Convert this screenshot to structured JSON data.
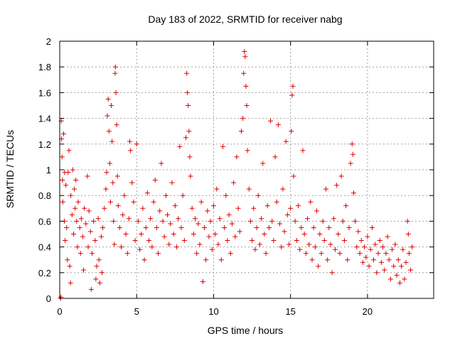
{
  "chart_data": {
    "type": "scatter",
    "title": "Day 183 of 2022, SRMTID for receiver nabg",
    "xlabel": "GPS time / hours",
    "ylabel": "SRMTID / TECUs",
    "xlim": [
      0,
      24.3
    ],
    "ylim": [
      0,
      2
    ],
    "xticks": [
      0,
      5,
      10,
      15,
      20
    ],
    "yticks": [
      0,
      0.2,
      0.4,
      0.6,
      0.8,
      1,
      1.2,
      1.4,
      1.6,
      1.8,
      2
    ],
    "xtick_labels": [
      "0",
      "5",
      "10",
      "15",
      "20"
    ],
    "ytick_labels": [
      "0",
      "0.2",
      "0.4",
      "0.6",
      "0.8",
      "1",
      "1.2",
      "1.4",
      "1.6",
      "1.8",
      "2"
    ],
    "grid": true,
    "marker": "plus",
    "color": "#dd0000",
    "series": [
      {
        "name": "SRMTID",
        "points": [
          [
            0.05,
            0.0
          ],
          [
            0.08,
            0.01
          ],
          [
            0.1,
            1.38
          ],
          [
            0.12,
            1.24
          ],
          [
            0.15,
            1.1
          ],
          [
            0.18,
            0.92
          ],
          [
            0.2,
            0.75
          ],
          [
            0.25,
            1.28
          ],
          [
            0.3,
            0.6
          ],
          [
            0.32,
            0.98
          ],
          [
            0.35,
            0.45
          ],
          [
            0.4,
            0.88
          ],
          [
            0.45,
            0.55
          ],
          [
            0.5,
            0.3
          ],
          [
            0.55,
            0.98
          ],
          [
            0.6,
            1.15
          ],
          [
            0.65,
            0.25
          ],
          [
            0.7,
            0.12
          ],
          [
            0.72,
            0.8
          ],
          [
            0.8,
            0.65
          ],
          [
            0.85,
            1.0
          ],
          [
            0.9,
            0.5
          ],
          [
            0.95,
            0.85
          ],
          [
            1.0,
            0.7
          ],
          [
            1.05,
            0.92
          ],
          [
            1.1,
            0.6
          ],
          [
            1.15,
            0.4
          ],
          [
            1.2,
            0.75
          ],
          [
            1.3,
            0.55
          ],
          [
            1.35,
            0.35
          ],
          [
            1.4,
            0.62
          ],
          [
            1.5,
            0.48
          ],
          [
            1.55,
            0.22
          ],
          [
            1.6,
            0.7
          ],
          [
            1.7,
            0.58
          ],
          [
            1.8,
            0.95
          ],
          [
            1.85,
            0.4
          ],
          [
            1.9,
            0.68
          ],
          [
            2.0,
            0.52
          ],
          [
            2.05,
            0.07
          ],
          [
            2.1,
            0.35
          ],
          [
            2.2,
            0.6
          ],
          [
            2.3,
            0.45
          ],
          [
            2.35,
            0.15
          ],
          [
            2.4,
            0.25
          ],
          [
            2.5,
            0.62
          ],
          [
            2.55,
            0.3
          ],
          [
            2.6,
            0.12
          ],
          [
            2.7,
            0.48
          ],
          [
            2.75,
            0.2
          ],
          [
            2.8,
            0.55
          ],
          [
            2.9,
            0.7
          ],
          [
            3.0,
            0.85
          ],
          [
            3.05,
            0.98
          ],
          [
            3.1,
            1.42
          ],
          [
            3.15,
            1.55
          ],
          [
            3.2,
            1.3
          ],
          [
            3.25,
            1.05
          ],
          [
            3.3,
            0.75
          ],
          [
            3.35,
            1.5
          ],
          [
            3.4,
            1.22
          ],
          [
            3.45,
            0.9
          ],
          [
            3.5,
            0.6
          ],
          [
            3.55,
            0.42
          ],
          [
            3.6,
            1.75
          ],
          [
            3.62,
            1.8
          ],
          [
            3.65,
            1.6
          ],
          [
            3.7,
            1.35
          ],
          [
            3.75,
            0.95
          ],
          [
            3.8,
            0.72
          ],
          [
            3.9,
            0.55
          ],
          [
            4.0,
            0.4
          ],
          [
            4.1,
            0.65
          ],
          [
            4.2,
            0.8
          ],
          [
            4.3,
            0.5
          ],
          [
            4.4,
            0.35
          ],
          [
            4.5,
            0.62
          ],
          [
            4.55,
            1.22
          ],
          [
            4.6,
            1.15
          ],
          [
            4.7,
            0.9
          ],
          [
            4.8,
            0.75
          ],
          [
            4.9,
            0.45
          ],
          [
            5.0,
            1.2
          ],
          [
            5.1,
            0.6
          ],
          [
            5.2,
            0.38
          ],
          [
            5.3,
            0.5
          ],
          [
            5.4,
            0.7
          ],
          [
            5.5,
            0.3
          ],
          [
            5.6,
            0.55
          ],
          [
            5.7,
            0.82
          ],
          [
            5.8,
            0.45
          ],
          [
            5.9,
            0.62
          ],
          [
            6.0,
            0.4
          ],
          [
            6.1,
            0.75
          ],
          [
            6.2,
            0.92
          ],
          [
            6.3,
            0.55
          ],
          [
            6.4,
            0.35
          ],
          [
            6.5,
            0.68
          ],
          [
            6.6,
            1.05
          ],
          [
            6.7,
            0.6
          ],
          [
            6.8,
            0.48
          ],
          [
            6.9,
            0.8
          ],
          [
            7.0,
            0.65
          ],
          [
            7.1,
            0.42
          ],
          [
            7.2,
            0.58
          ],
          [
            7.3,
            0.9
          ],
          [
            7.4,
            0.5
          ],
          [
            7.5,
            0.72
          ],
          [
            7.6,
            0.4
          ],
          [
            7.7,
            0.62
          ],
          [
            7.8,
            1.18
          ],
          [
            7.9,
            0.55
          ],
          [
            8.0,
            0.8
          ],
          [
            8.1,
            0.45
          ],
          [
            8.2,
            1.25
          ],
          [
            8.25,
            1.75
          ],
          [
            8.3,
            1.6
          ],
          [
            8.35,
            1.5
          ],
          [
            8.4,
            1.3
          ],
          [
            8.45,
            1.1
          ],
          [
            8.5,
            0.95
          ],
          [
            8.6,
            0.7
          ],
          [
            8.7,
            0.5
          ],
          [
            8.8,
            0.62
          ],
          [
            8.9,
            0.35
          ],
          [
            9.0,
            0.58
          ],
          [
            9.1,
            0.42
          ],
          [
            9.2,
            0.75
          ],
          [
            9.3,
            0.13
          ],
          [
            9.4,
            0.55
          ],
          [
            9.5,
            0.3
          ],
          [
            9.6,
            0.68
          ],
          [
            9.7,
            0.48
          ],
          [
            9.8,
            0.6
          ],
          [
            9.9,
            0.38
          ],
          [
            10.0,
            0.72
          ],
          [
            10.1,
            0.5
          ],
          [
            10.2,
            0.85
          ],
          [
            10.3,
            0.42
          ],
          [
            10.4,
            0.62
          ],
          [
            10.5,
            0.3
          ],
          [
            10.6,
            1.18
          ],
          [
            10.7,
            0.55
          ],
          [
            10.8,
            0.8
          ],
          [
            10.9,
            0.45
          ],
          [
            11.0,
            0.65
          ],
          [
            11.1,
            0.35
          ],
          [
            11.2,
            0.58
          ],
          [
            11.3,
            0.9
          ],
          [
            11.4,
            0.48
          ],
          [
            11.5,
            1.1
          ],
          [
            11.6,
            0.7
          ],
          [
            11.7,
            0.52
          ],
          [
            11.8,
            1.3
          ],
          [
            11.9,
            1.4
          ],
          [
            11.95,
            1.75
          ],
          [
            12.0,
            1.92
          ],
          [
            12.05,
            1.88
          ],
          [
            12.1,
            1.65
          ],
          [
            12.15,
            1.5
          ],
          [
            12.2,
            1.15
          ],
          [
            12.3,
            0.85
          ],
          [
            12.4,
            0.6
          ],
          [
            12.5,
            0.45
          ],
          [
            12.6,
            0.7
          ],
          [
            12.7,
            0.38
          ],
          [
            12.8,
            0.55
          ],
          [
            12.9,
            0.8
          ],
          [
            13.0,
            0.42
          ],
          [
            13.1,
            0.62
          ],
          [
            13.2,
            1.05
          ],
          [
            13.3,
            0.5
          ],
          [
            13.4,
            0.35
          ],
          [
            13.5,
            0.72
          ],
          [
            13.6,
            0.55
          ],
          [
            13.7,
            1.38
          ],
          [
            13.8,
            0.6
          ],
          [
            13.9,
            0.45
          ],
          [
            14.0,
            1.1
          ],
          [
            14.1,
            0.75
          ],
          [
            14.2,
            1.35
          ],
          [
            14.3,
            0.58
          ],
          [
            14.4,
            0.4
          ],
          [
            14.5,
            0.85
          ],
          [
            14.6,
            0.52
          ],
          [
            14.7,
            1.22
          ],
          [
            14.8,
            0.65
          ],
          [
            14.9,
            0.42
          ],
          [
            15.0,
            0.7
          ],
          [
            15.05,
            1.3
          ],
          [
            15.1,
            1.58
          ],
          [
            15.15,
            1.65
          ],
          [
            15.2,
            0.95
          ],
          [
            15.3,
            0.6
          ],
          [
            15.4,
            0.45
          ],
          [
            15.5,
            0.72
          ],
          [
            15.6,
            0.38
          ],
          [
            15.7,
            0.55
          ],
          [
            15.8,
            1.15
          ],
          [
            15.9,
            0.5
          ],
          [
            16.0,
            0.35
          ],
          [
            16.1,
            0.62
          ],
          [
            16.2,
            0.42
          ],
          [
            16.3,
            0.75
          ],
          [
            16.4,
            0.3
          ],
          [
            16.5,
            0.55
          ],
          [
            16.6,
            0.4
          ],
          [
            16.7,
            0.68
          ],
          [
            16.8,
            0.25
          ],
          [
            16.9,
            0.5
          ],
          [
            17.0,
            0.35
          ],
          [
            17.1,
            0.6
          ],
          [
            17.2,
            0.45
          ],
          [
            17.3,
            0.85
          ],
          [
            17.4,
            0.3
          ],
          [
            17.5,
            0.55
          ],
          [
            17.6,
            0.42
          ],
          [
            17.7,
            0.2
          ],
          [
            17.8,
            0.62
          ],
          [
            17.9,
            0.38
          ],
          [
            18.0,
            0.88
          ],
          [
            18.1,
            0.5
          ],
          [
            18.2,
            0.35
          ],
          [
            18.3,
            0.95
          ],
          [
            18.4,
            0.6
          ],
          [
            18.5,
            0.45
          ],
          [
            18.6,
            0.72
          ],
          [
            18.7,
            0.3
          ],
          [
            18.8,
            0.55
          ],
          [
            18.9,
            1.05
          ],
          [
            19.0,
            1.2
          ],
          [
            19.05,
            1.12
          ],
          [
            19.1,
            0.82
          ],
          [
            19.2,
            0.6
          ],
          [
            19.3,
            0.4
          ],
          [
            19.4,
            0.52
          ],
          [
            19.5,
            0.35
          ],
          [
            19.6,
            0.45
          ],
          [
            19.7,
            0.28
          ],
          [
            19.8,
            0.4
          ],
          [
            19.9,
            0.32
          ],
          [
            20.0,
            0.48
          ],
          [
            20.1,
            0.25
          ],
          [
            20.2,
            0.38
          ],
          [
            20.3,
            0.55
          ],
          [
            20.4,
            0.3
          ],
          [
            20.5,
            0.42
          ],
          [
            20.6,
            0.2
          ],
          [
            20.7,
            0.35
          ],
          [
            20.8,
            0.45
          ],
          [
            20.9,
            0.28
          ],
          [
            21.0,
            0.4
          ],
          [
            21.1,
            0.22
          ],
          [
            21.2,
            0.35
          ],
          [
            21.3,
            0.48
          ],
          [
            21.4,
            0.3
          ],
          [
            21.5,
            0.15
          ],
          [
            21.6,
            0.38
          ],
          [
            21.7,
            0.25
          ],
          [
            21.8,
            0.42
          ],
          [
            21.9,
            0.18
          ],
          [
            22.0,
            0.3
          ],
          [
            22.1,
            0.12
          ],
          [
            22.2,
            0.25
          ],
          [
            22.3,
            0.38
          ],
          [
            22.4,
            0.15
          ],
          [
            22.5,
            0.28
          ],
          [
            22.6,
            0.6
          ],
          [
            22.65,
            0.5
          ],
          [
            22.7,
            0.35
          ],
          [
            22.8,
            0.22
          ],
          [
            22.9,
            0.4
          ]
        ]
      }
    ]
  }
}
